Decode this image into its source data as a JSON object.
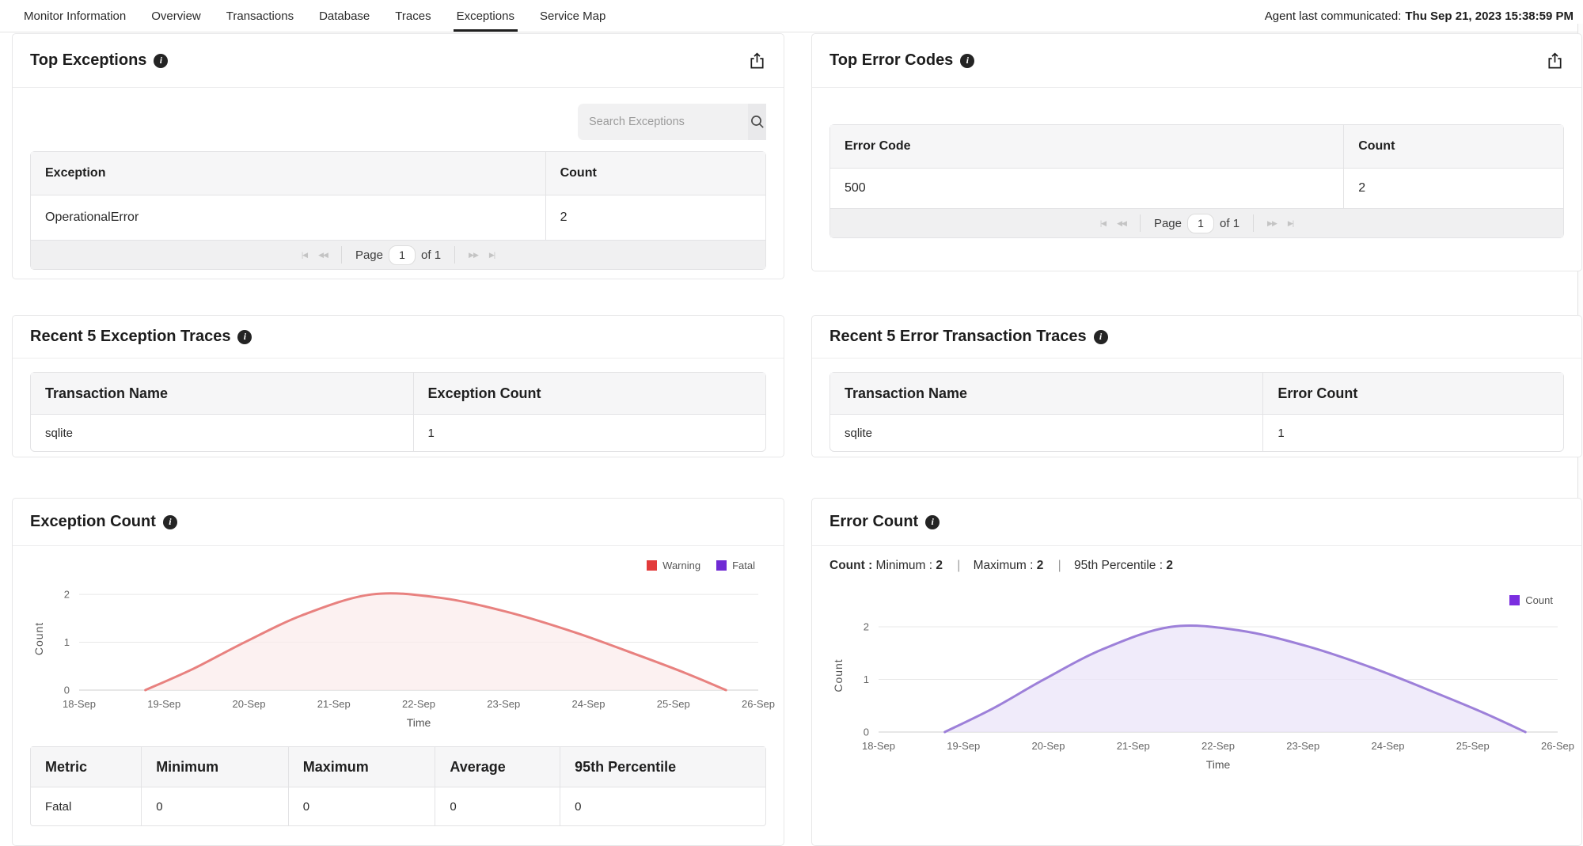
{
  "nav": {
    "tabs": [
      {
        "label": "Monitor Information"
      },
      {
        "label": "Overview"
      },
      {
        "label": "Transactions"
      },
      {
        "label": "Database"
      },
      {
        "label": "Traces"
      },
      {
        "label": "Exceptions"
      },
      {
        "label": "Service Map"
      }
    ],
    "active_tab": "Exceptions",
    "agent_label": "Agent last communicated:",
    "agent_value": "Thu Sep 21, 2023 15:38:59 PM"
  },
  "pagination": {
    "page_label": "Page",
    "page_value": "1",
    "of_label": "of",
    "total_pages": "1"
  },
  "panels": {
    "top_exceptions": {
      "title": "Top Exceptions",
      "search_placeholder": "Search Exceptions",
      "table": {
        "headers": [
          "Exception",
          "Count"
        ],
        "rows": [
          [
            "OperationalError",
            "2"
          ]
        ]
      }
    },
    "top_error_codes": {
      "title": "Top Error Codes",
      "table": {
        "headers": [
          "Error Code",
          "Count"
        ],
        "rows": [
          [
            "500",
            "2"
          ]
        ]
      }
    },
    "recent_exception_traces": {
      "title": "Recent 5 Exception Traces",
      "table": {
        "headers": [
          "Transaction Name",
          "Exception Count"
        ],
        "rows": [
          [
            "sqlite",
            "1"
          ]
        ]
      }
    },
    "recent_error_traces": {
      "title": "Recent 5 Error Transaction Traces",
      "table": {
        "headers": [
          "Transaction Name",
          "Error Count"
        ],
        "rows": [
          [
            "sqlite",
            "1"
          ]
        ]
      }
    },
    "exception_count": {
      "title": "Exception Count",
      "metric_table": {
        "headers": [
          "Metric",
          "Minimum",
          "Maximum",
          "Average",
          "95th Percentile"
        ],
        "rows": [
          [
            "Fatal",
            "0",
            "0",
            "0",
            "0"
          ]
        ]
      }
    },
    "error_count": {
      "title": "Error Count",
      "stats": {
        "prefix_label": "Count :",
        "items": [
          {
            "label": "Minimum :",
            "value": "2"
          },
          {
            "label": "Maximum :",
            "value": "2"
          },
          {
            "label": "95th Percentile :",
            "value": "2"
          }
        ]
      }
    }
  },
  "chart_data": [
    {
      "id": "exception-count",
      "type": "area",
      "title": "Exception Count",
      "xlabel": "Time",
      "ylabel": "Count",
      "x_ticks": [
        "18-Sep",
        "19-Sep",
        "20-Sep",
        "21-Sep",
        "22-Sep",
        "23-Sep",
        "24-Sep",
        "25-Sep",
        "26-Sep"
      ],
      "x_domain_days": [
        0,
        8
      ],
      "y_ticks": [
        0,
        1,
        2
      ],
      "ylim": [
        0,
        2.15
      ],
      "grid": "horizontal",
      "legend_position": "top-right",
      "series": [
        {
          "name": "Warning",
          "line_color": "#e8817f",
          "fill_color": "#fbecec",
          "legend_color": "#e23b3b",
          "points": [
            [
              0.78,
              0
            ],
            [
              1.35,
              0.45
            ],
            [
              1.95,
              1.0
            ],
            [
              2.65,
              1.58
            ],
            [
              3.45,
              2.0
            ],
            [
              4.25,
              1.93
            ],
            [
              5.05,
              1.63
            ],
            [
              5.85,
              1.2
            ],
            [
              6.6,
              0.72
            ],
            [
              7.15,
              0.35
            ],
            [
              7.62,
              0
            ]
          ]
        },
        {
          "name": "Fatal",
          "line_color": "#6f2ad4",
          "fill_color": "#ebe4f8",
          "legend_color": "#6f2ad4",
          "points": []
        }
      ]
    },
    {
      "id": "error-count",
      "type": "area",
      "title": "Error Count",
      "xlabel": "Time",
      "ylabel": "Count",
      "x_ticks": [
        "18-Sep",
        "19-Sep",
        "20-Sep",
        "21-Sep",
        "22-Sep",
        "23-Sep",
        "24-Sep",
        "25-Sep",
        "26-Sep"
      ],
      "x_domain_days": [
        0,
        8
      ],
      "y_ticks": [
        0,
        1,
        2
      ],
      "ylim": [
        0,
        2.15
      ],
      "grid": "horizontal",
      "legend_position": "top-right",
      "series": [
        {
          "name": "Count",
          "line_color": "#9d80d9",
          "fill_color": "#ebe4f8",
          "legend_color": "#7b2ee0",
          "points": [
            [
              0.78,
              0
            ],
            [
              1.35,
              0.45
            ],
            [
              1.95,
              1.0
            ],
            [
              2.65,
              1.58
            ],
            [
              3.45,
              2.0
            ],
            [
              4.25,
              1.93
            ],
            [
              5.05,
              1.63
            ],
            [
              5.85,
              1.2
            ],
            [
              6.6,
              0.72
            ],
            [
              7.15,
              0.35
            ],
            [
              7.62,
              0
            ]
          ]
        }
      ]
    }
  ],
  "colors": {
    "accent_red": "#e23b3b",
    "accent_purple": "#6f2ad4",
    "curve_red": "#e8817f",
    "curve_purple": "#9d80d9",
    "table_header_bg": "#f6f6f7",
    "pager_bg": "#f0f0f1"
  }
}
